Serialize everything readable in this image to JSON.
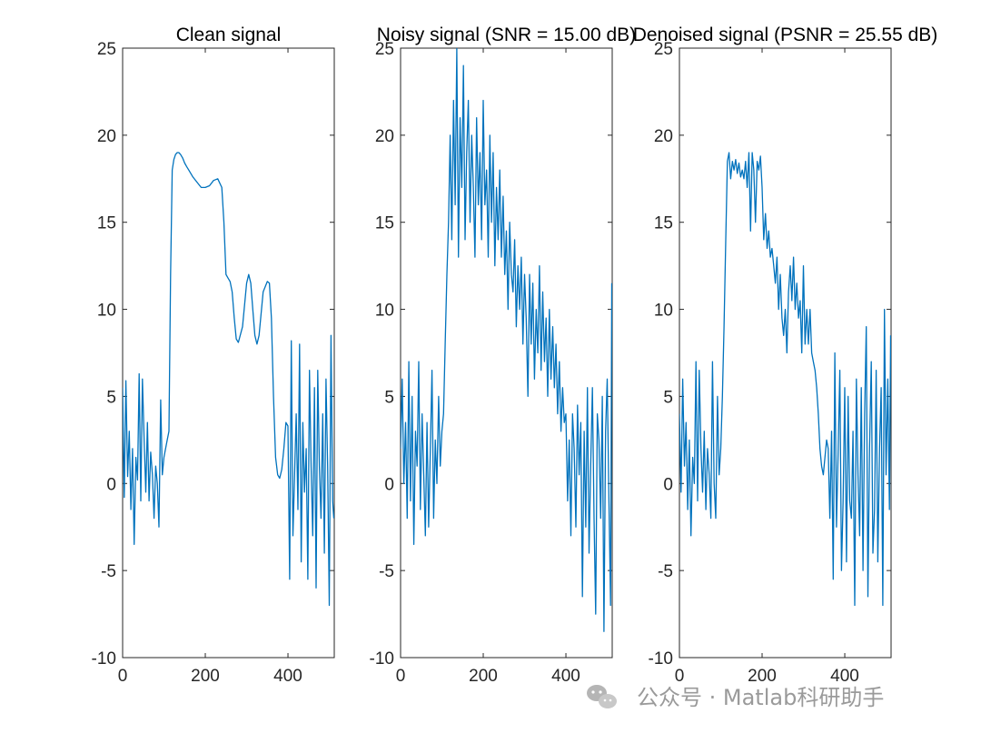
{
  "figure": {
    "watermark": "公众号 · Matlab科研助手"
  },
  "chart_data": [
    {
      "type": "line",
      "title": "Clean signal",
      "xlabel": "",
      "ylabel": "",
      "xlim": [
        0,
        512
      ],
      "ylim": [
        -10,
        25
      ],
      "xticks": [
        0,
        200,
        400
      ],
      "yticks": [
        -10,
        -5,
        0,
        5,
        10,
        15,
        20,
        25
      ],
      "grid": false,
      "color": "#0072BD",
      "series": [
        {
          "x": [
            0,
            4,
            8,
            12,
            16,
            20,
            24,
            28,
            32,
            36,
            40,
            44,
            48,
            52,
            56,
            60,
            64,
            68,
            72,
            76,
            80,
            84,
            88,
            92,
            96,
            100,
            104,
            108,
            112,
            116,
            120,
            124,
            128,
            132,
            136,
            140,
            145,
            150,
            155,
            160,
            170,
            180,
            190,
            200,
            210,
            220,
            230,
            240,
            245,
            250,
            255,
            260,
            265,
            270,
            275,
            280,
            290,
            300,
            305,
            310,
            315,
            320,
            325,
            330,
            340,
            350,
            355,
            360,
            365,
            370,
            375,
            380,
            385,
            390,
            395,
            400,
            404,
            408,
            412,
            416,
            420,
            424,
            428,
            432,
            436,
            440,
            444,
            448,
            452,
            456,
            460,
            464,
            468,
            472,
            476,
            480,
            484,
            488,
            492,
            496,
            500,
            504,
            508,
            511
          ],
          "y": [
            5.5,
            -0.8,
            5.9,
            0.4,
            3.0,
            -1.5,
            2.0,
            -3.5,
            1.5,
            0.2,
            6.3,
            -1.0,
            6.0,
            2.5,
            -0.5,
            3.5,
            -1.0,
            1.8,
            0.5,
            -2.0,
            1.0,
            0.0,
            -2.5,
            4.8,
            0.5,
            1.5,
            2.0,
            2.5,
            3.0,
            12.0,
            18.0,
            18.6,
            18.9,
            19.0,
            19.0,
            18.9,
            18.7,
            18.4,
            18.2,
            18.0,
            17.6,
            17.3,
            17.0,
            17.0,
            17.1,
            17.4,
            17.5,
            17.0,
            15.0,
            12.0,
            11.8,
            11.6,
            11.0,
            9.5,
            8.3,
            8.1,
            9.0,
            11.5,
            12.0,
            11.5,
            10.0,
            8.5,
            8.0,
            8.5,
            11.0,
            11.6,
            11.5,
            9.5,
            5.0,
            1.5,
            0.5,
            0.3,
            0.8,
            2.0,
            3.5,
            3.3,
            -5.5,
            8.2,
            -3.0,
            0.5,
            4.0,
            -1.5,
            8.0,
            -4.5,
            3.5,
            -0.5,
            2.0,
            -5.5,
            6.5,
            1.0,
            -3.0,
            5.5,
            -6.0,
            6.5,
            1.0,
            -2.0,
            4.0,
            -4.0,
            6.0,
            1.0,
            -7.0,
            8.5,
            -1.0,
            -2.0
          ]
        }
      ]
    },
    {
      "type": "line",
      "title": "Noisy signal (SNR = 15.00 dB)",
      "xlabel": "",
      "ylabel": "",
      "xlim": [
        0,
        512
      ],
      "ylim": [
        -10,
        25
      ],
      "xticks": [
        0,
        200,
        400
      ],
      "yticks": [
        -10,
        -5,
        0,
        5,
        10,
        15,
        20,
        25
      ],
      "grid": false,
      "color": "#0072BD",
      "series": [
        {
          "x": [
            0,
            4,
            8,
            12,
            16,
            20,
            24,
            28,
            32,
            36,
            40,
            44,
            48,
            52,
            56,
            60,
            64,
            68,
            72,
            76,
            80,
            84,
            88,
            92,
            96,
            100,
            104,
            108,
            112,
            116,
            120,
            124,
            128,
            132,
            136,
            140,
            144,
            148,
            152,
            156,
            160,
            164,
            168,
            172,
            176,
            180,
            184,
            188,
            192,
            196,
            200,
            204,
            208,
            212,
            216,
            220,
            224,
            228,
            232,
            236,
            240,
            244,
            248,
            252,
            256,
            260,
            264,
            268,
            272,
            276,
            280,
            284,
            288,
            292,
            296,
            300,
            304,
            308,
            312,
            316,
            320,
            324,
            328,
            332,
            336,
            340,
            344,
            348,
            352,
            356,
            360,
            364,
            368,
            372,
            376,
            380,
            384,
            388,
            392,
            396,
            400,
            404,
            408,
            412,
            416,
            420,
            424,
            428,
            432,
            436,
            440,
            444,
            448,
            452,
            456,
            460,
            464,
            468,
            472,
            476,
            480,
            484,
            488,
            492,
            496,
            500,
            504,
            508,
            511
          ],
          "y": [
            2.0,
            6.0,
            0.0,
            3.5,
            -2.0,
            7.0,
            -1.0,
            5.0,
            -3.5,
            3.0,
            1.0,
            7.0,
            -1.5,
            4.0,
            0.5,
            -3.0,
            3.5,
            -2.5,
            2.0,
            6.5,
            -2.0,
            2.5,
            0.0,
            5.0,
            1.0,
            3.0,
            4.0,
            8.0,
            12.0,
            15.0,
            20.0,
            14.0,
            22.0,
            16.0,
            25.0,
            13.0,
            21.0,
            17.0,
            24.0,
            14.0,
            19.0,
            22.0,
            15.0,
            20.0,
            17.0,
            13.0,
            21.0,
            16.0,
            19.0,
            14.0,
            22.0,
            16.0,
            18.0,
            13.0,
            20.0,
            15.0,
            19.0,
            12.5,
            17.0,
            14.0,
            18.0,
            13.0,
            16.5,
            12.0,
            14.5,
            10.0,
            15.0,
            12.0,
            11.0,
            14.0,
            9.0,
            12.5,
            10.0,
            13.0,
            8.0,
            12.0,
            9.5,
            5.0,
            12.0,
            8.0,
            11.5,
            6.0,
            10.0,
            7.5,
            12.5,
            6.5,
            11.0,
            7.0,
            9.5,
            5.0,
            10.0,
            6.0,
            9.0,
            5.5,
            8.0,
            4.0,
            7.0,
            3.0,
            5.5,
            3.5,
            4.0,
            -1.0,
            2.5,
            -3.0,
            4.0,
            2.0,
            -2.5,
            4.5,
            0.5,
            3.5,
            -6.5,
            3.0,
            -2.5,
            5.5,
            -4.0,
            1.0,
            5.5,
            -2.0,
            -7.5,
            4.0,
            2.5,
            -2.0,
            5.0,
            -8.5,
            3.0,
            6.0,
            -1.0,
            -7.0,
            11.5
          ]
        }
      ]
    },
    {
      "type": "line",
      "title": "Denoised signal (PSNR = 25.55 dB)",
      "xlabel": "",
      "ylabel": "",
      "xlim": [
        0,
        512
      ],
      "ylim": [
        -10,
        25
      ],
      "xticks": [
        0,
        200,
        400
      ],
      "yticks": [
        -10,
        -5,
        0,
        5,
        10,
        15,
        20,
        25
      ],
      "grid": false,
      "color": "#0072BD",
      "series": [
        {
          "x": [
            0,
            4,
            8,
            12,
            16,
            20,
            24,
            28,
            32,
            36,
            40,
            44,
            48,
            52,
            56,
            60,
            64,
            68,
            72,
            76,
            80,
            84,
            88,
            92,
            96,
            100,
            104,
            108,
            112,
            116,
            120,
            124,
            128,
            132,
            136,
            140,
            144,
            148,
            152,
            156,
            160,
            164,
            168,
            172,
            176,
            180,
            184,
            188,
            192,
            196,
            200,
            204,
            208,
            212,
            216,
            220,
            224,
            228,
            232,
            236,
            240,
            244,
            248,
            252,
            256,
            260,
            264,
            268,
            272,
            276,
            280,
            284,
            288,
            292,
            296,
            300,
            304,
            308,
            312,
            316,
            320,
            324,
            328,
            332,
            336,
            340,
            344,
            348,
            352,
            356,
            360,
            364,
            368,
            372,
            376,
            380,
            384,
            388,
            392,
            396,
            400,
            404,
            408,
            412,
            416,
            420,
            424,
            428,
            432,
            436,
            440,
            444,
            448,
            452,
            456,
            460,
            464,
            468,
            472,
            476,
            480,
            484,
            488,
            492,
            496,
            500,
            504,
            508,
            511
          ],
          "y": [
            4.0,
            -0.5,
            6.0,
            1.0,
            3.5,
            -1.5,
            2.5,
            -3.0,
            1.5,
            0.0,
            7.0,
            -1.0,
            6.5,
            2.0,
            -0.5,
            3.0,
            -1.5,
            2.0,
            0.5,
            -2.0,
            7.0,
            0.0,
            -2.0,
            5.0,
            0.5,
            2.0,
            5.0,
            9.0,
            14.0,
            18.5,
            19.0,
            17.5,
            18.5,
            18.0,
            18.6,
            17.8,
            18.4,
            17.6,
            18.0,
            17.5,
            18.5,
            17.0,
            19.0,
            14.5,
            19.0,
            18.0,
            15.0,
            18.5,
            18.0,
            18.8,
            17.0,
            14.0,
            15.5,
            13.5,
            14.5,
            13.0,
            13.5,
            12.5,
            11.5,
            13.0,
            10.0,
            12.0,
            9.5,
            8.5,
            10.0,
            7.5,
            11.0,
            12.5,
            10.5,
            13.0,
            10.0,
            11.5,
            9.5,
            10.5,
            7.5,
            12.5,
            8.0,
            10.0,
            8.0,
            10.0,
            7.5,
            7.0,
            6.5,
            5.5,
            4.0,
            2.0,
            1.0,
            0.5,
            1.5,
            2.5,
            2.0,
            -2.0,
            3.0,
            -5.5,
            7.5,
            -2.5,
            2.0,
            6.5,
            -5.0,
            -1.0,
            5.5,
            -4.5,
            5.0,
            -1.0,
            -2.0,
            3.0,
            -7.0,
            6.0,
            0.5,
            -3.0,
            5.5,
            -5.0,
            4.0,
            9.0,
            -6.5,
            2.0,
            7.0,
            -4.0,
            -1.5,
            6.5,
            -4.5,
            2.0,
            5.5,
            -7.0,
            10.0,
            0.5,
            6.0,
            -1.5,
            8.5
          ]
        }
      ]
    }
  ]
}
